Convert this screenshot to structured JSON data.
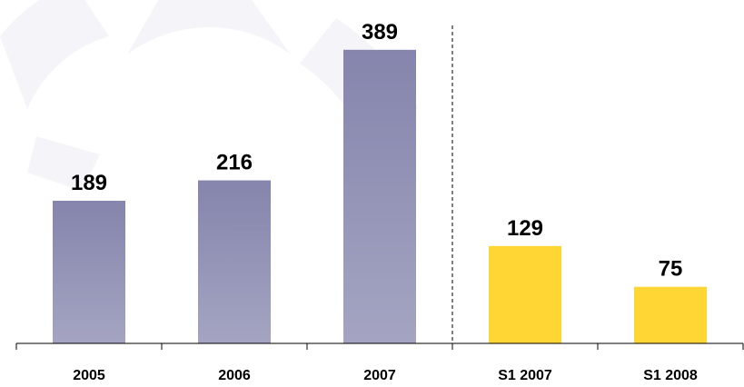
{
  "chart_data": {
    "type": "bar",
    "categories": [
      "2005",
      "2006",
      "2007",
      "S1 2007",
      "S1 2008"
    ],
    "values": [
      189,
      216,
      389,
      129,
      75
    ],
    "colors": [
      "#8585ad",
      "#8585ad",
      "#8585ad",
      "#ffd633",
      "#ffd633"
    ],
    "ylim": [
      0,
      455
    ]
  }
}
